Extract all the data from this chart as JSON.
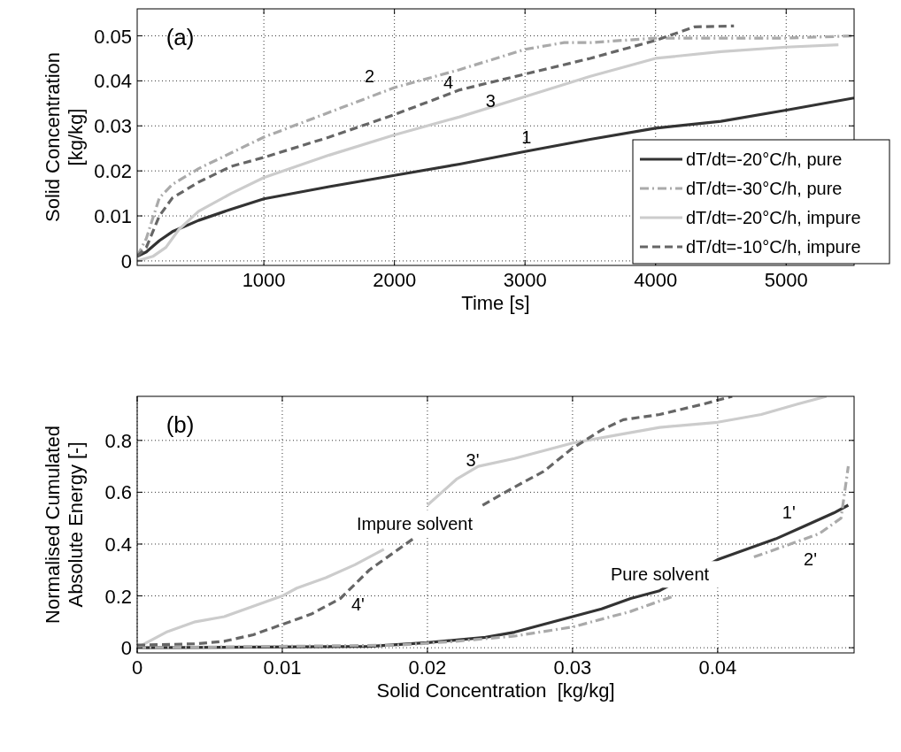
{
  "chart_data": [
    {
      "type": "line",
      "xlabel": "Time [s]",
      "ylabel": "Solid Concentration [kg/kg]",
      "xlim": [
        30,
        5520
      ],
      "ylim": [
        -0.001,
        0.056
      ],
      "xticks": [
        1000,
        2000,
        3000,
        4000,
        5000
      ],
      "yticks": [
        0,
        0.01,
        0.02,
        0.03,
        0.04,
        0.05
      ],
      "grid": true,
      "legend": "right",
      "annotations": [
        "(a)",
        "1",
        "2",
        "3",
        "4"
      ],
      "series": [
        {
          "name": "dT/dt=-20°C/h, pure",
          "color": "#333333",
          "line_style": "solid",
          "x": [
            30,
            100,
            200,
            300,
            500,
            750,
            1000,
            1500,
            2000,
            2500,
            3000,
            3500,
            4000,
            4500,
            5000,
            5520
          ],
          "values": [
            0.001,
            0.002,
            0.0045,
            0.0065,
            0.009,
            0.0115,
            0.0138,
            0.0165,
            0.019,
            0.0215,
            0.0243,
            0.027,
            0.0295,
            0.031,
            0.0335,
            0.0362
          ]
        },
        {
          "name": "dT/dt=-30°C/h, pure",
          "color": "#aaaaaa",
          "line_style": "dashdot",
          "x": [
            30,
            100,
            200,
            300,
            500,
            750,
            1000,
            1500,
            2000,
            2500,
            3000,
            3300,
            3500,
            4000,
            4500,
            5000,
            5520
          ],
          "values": [
            0.001,
            0.005,
            0.014,
            0.017,
            0.0205,
            0.024,
            0.0275,
            0.033,
            0.0385,
            0.0425,
            0.047,
            0.0485,
            0.0485,
            0.0495,
            0.0495,
            0.0495,
            0.05
          ]
        },
        {
          "name": "dT/dt=-20°C/h, impure",
          "color": "#cccccc",
          "line_style": "solid",
          "x": [
            30,
            150,
            250,
            350,
            500,
            750,
            1000,
            1500,
            2000,
            2500,
            3000,
            3500,
            4000,
            4500,
            5000,
            5400
          ],
          "values": [
            0,
            0.001,
            0.003,
            0.007,
            0.011,
            0.015,
            0.0185,
            0.0235,
            0.028,
            0.032,
            0.0365,
            0.041,
            0.045,
            0.0465,
            0.0475,
            0.048
          ]
        },
        {
          "name": "dT/dt=-10°C/h, impure",
          "color": "#666666",
          "line_style": "dashed",
          "x": [
            30,
            100,
            200,
            300,
            500,
            750,
            1000,
            1500,
            2000,
            2500,
            3000,
            3500,
            4000,
            4300,
            4600
          ],
          "values": [
            0.001,
            0.003,
            0.01,
            0.014,
            0.0175,
            0.021,
            0.023,
            0.0275,
            0.0325,
            0.038,
            0.0415,
            0.045,
            0.049,
            0.052,
            0.0522
          ]
        }
      ]
    },
    {
      "type": "line",
      "xlabel": "Solid Concentration  [kg/kg]",
      "ylabel": "Normalised Cumulated Absolute Energy [-]",
      "xlim": [
        0,
        0.0494
      ],
      "ylim": [
        -0.02,
        0.97
      ],
      "xticks": [
        0,
        0.01,
        0.02,
        0.03,
        0.04
      ],
      "yticks": [
        0,
        0.2,
        0.4,
        0.6,
        0.8
      ],
      "grid": true,
      "annotations": [
        "(b)",
        "1'",
        "2'",
        "3'",
        "4'",
        "Impure solvent",
        "Pure solvent"
      ],
      "series": [
        {
          "color": "#333333",
          "line_style": "solid",
          "x": [
            0,
            0.016,
            0.02,
            0.024,
            0.026,
            0.028,
            0.03,
            0.032,
            0.034,
            0.036,
            0.04,
            0.042,
            0.044,
            0.046,
            0.048,
            0.049
          ],
          "values": [
            0,
            0.005,
            0.02,
            0.04,
            0.06,
            0.09,
            0.12,
            0.15,
            0.19,
            0.22,
            0.34,
            0.38,
            0.42,
            0.47,
            0.52,
            0.55
          ]
        },
        {
          "color": "#aaaaaa",
          "line_style": "dashdot",
          "x": [
            0,
            0.018,
            0.022,
            0.026,
            0.03,
            0.034,
            0.037,
            0.04,
            0.0425,
            0.045,
            0.047,
            0.0485,
            0.049
          ],
          "values": [
            0,
            0.01,
            0.025,
            0.045,
            0.08,
            0.14,
            0.2,
            null,
            0.35,
            0.4,
            0.44,
            0.5,
            0.7
          ]
        },
        {
          "color": "#cccccc",
          "line_style": "solid",
          "x": [
            0,
            0.002,
            0.004,
            0.006,
            0.008,
            0.01,
            0.011,
            0.013,
            0.015,
            0.017,
            0.019,
            0.02,
            0.021,
            0.022,
            0.0235,
            0.026,
            0.028,
            0.03,
            0.033,
            0.036,
            0.04,
            0.043,
            0.0455,
            0.0475
          ],
          "values": [
            0,
            0.06,
            0.1,
            0.12,
            0.16,
            0.2,
            0.23,
            0.27,
            0.32,
            0.38,
            null,
            0.55,
            0.6,
            0.65,
            0.7,
            0.73,
            0.76,
            0.79,
            0.82,
            0.85,
            0.87,
            0.9,
            0.94,
            0.97
          ]
        },
        {
          "color": "#666666",
          "line_style": "dashed",
          "x": [
            0,
            0.004,
            0.006,
            0.008,
            0.01,
            0.012,
            0.014,
            0.016,
            0.018,
            0.019,
            0.021,
            0.0238,
            0.026,
            0.028,
            0.03,
            0.032,
            0.0335,
            0.036,
            0.039,
            0.041
          ],
          "values": [
            0.01,
            0.015,
            0.025,
            0.05,
            0.09,
            0.13,
            0.19,
            0.3,
            0.38,
            0.42,
            null,
            0.55,
            0.62,
            0.68,
            0.77,
            0.84,
            0.88,
            0.9,
            0.94,
            0.97
          ]
        }
      ]
    }
  ]
}
